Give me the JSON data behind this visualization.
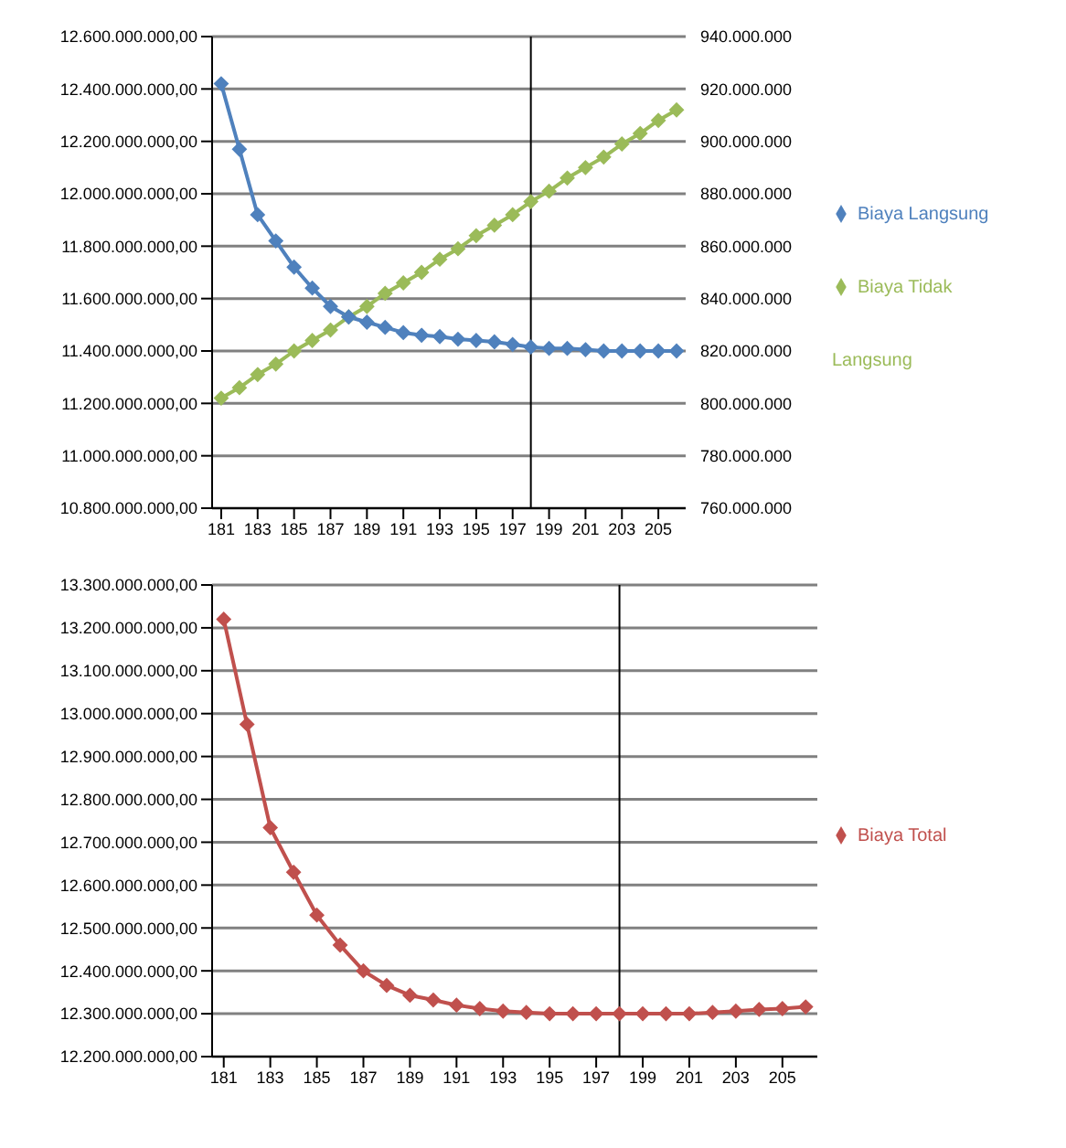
{
  "chart_data": [
    {
      "type": "line",
      "x": [
        181,
        182,
        183,
        184,
        185,
        186,
        187,
        188,
        189,
        190,
        191,
        192,
        193,
        194,
        195,
        196,
        197,
        198,
        199,
        200,
        201,
        202,
        203,
        204,
        205,
        206
      ],
      "xlim": [
        180.5,
        206.5
      ],
      "xticks": [
        181,
        183,
        185,
        187,
        189,
        191,
        193,
        195,
        197,
        199,
        201,
        203,
        205
      ],
      "ylim": [
        10800000000,
        12600000000
      ],
      "yticks": [
        {
          "value": 10800000000,
          "label": "10.800.000.000,00"
        },
        {
          "value": 11000000000,
          "label": "11.000.000.000,00"
        },
        {
          "value": 11200000000,
          "label": "11.200.000.000,00"
        },
        {
          "value": 11400000000,
          "label": "11.400.000.000,00"
        },
        {
          "value": 11600000000,
          "label": "11.600.000.000,00"
        },
        {
          "value": 11800000000,
          "label": "11.800.000.000,00"
        },
        {
          "value": 12000000000,
          "label": "12.000.000.000,00"
        },
        {
          "value": 12200000000,
          "label": "12.200.000.000,00"
        },
        {
          "value": 12400000000,
          "label": "12.400.000.000,00"
        },
        {
          "value": 12600000000,
          "label": "12.600.000.000,00"
        }
      ],
      "y2lim": [
        760000000,
        940000000
      ],
      "y2ticks": [
        {
          "value": 760000000,
          "label": "760.000.000"
        },
        {
          "value": 780000000,
          "label": "780.000.000"
        },
        {
          "value": 800000000,
          "label": "800.000.000"
        },
        {
          "value": 820000000,
          "label": "820.000.000"
        },
        {
          "value": 840000000,
          "label": "840.000.000"
        },
        {
          "value": 860000000,
          "label": "860.000.000"
        },
        {
          "value": 880000000,
          "label": "880.000.000"
        },
        {
          "value": 900000000,
          "label": "900.000.000"
        },
        {
          "value": 920000000,
          "label": "920.000.000"
        },
        {
          "value": 940000000,
          "label": "940.000.000"
        }
      ],
      "series": [
        {
          "name": "Biaya Langsung",
          "color": "#4f81bd",
          "values": [
            12420000000,
            12170000000,
            11920000000,
            11820000000,
            11720000000,
            11640000000,
            11570000000,
            11530000000,
            11510000000,
            11490000000,
            11470000000,
            11460000000,
            11455000000,
            11445000000,
            11440000000,
            11435000000,
            11425000000,
            11415000000,
            11410000000,
            11410000000,
            11405000000,
            11400000000,
            11400000000,
            11400000000,
            11400000000,
            11400000000
          ]
        },
        {
          "name": "Biaya Tidak Langsung",
          "color": "#9bbb59",
          "axis": "y2",
          "values": [
            802000000,
            806000000,
            811000000,
            815000000,
            820000000,
            824000000,
            828000000,
            833000000,
            837000000,
            842000000,
            846000000,
            850000000,
            855000000,
            859000000,
            864000000,
            868000000,
            872000000,
            877000000,
            881000000,
            886000000,
            890000000,
            894000000,
            899000000,
            903000000,
            908000000,
            912000000
          ]
        }
      ],
      "ref_lines": [
        {
          "axis": "x",
          "value": 198,
          "color": "#000000"
        }
      ],
      "grid": "y",
      "legend": "right",
      "marker": "diamond",
      "line_style": "solid"
    },
    {
      "type": "line",
      "x": [
        181,
        182,
        183,
        184,
        185,
        186,
        187,
        188,
        189,
        190,
        191,
        192,
        193,
        194,
        195,
        196,
        197,
        198,
        199,
        200,
        201,
        202,
        203,
        204,
        205,
        206
      ],
      "xlim": [
        180.5,
        206.5
      ],
      "xticks": [
        181,
        183,
        185,
        187,
        189,
        191,
        193,
        195,
        197,
        199,
        201,
        203,
        205
      ],
      "ylim": [
        12200000000,
        13300000000
      ],
      "yticks": [
        {
          "value": 12200000000,
          "label": "12.200.000.000,00"
        },
        {
          "value": 12300000000,
          "label": "12.300.000.000,00"
        },
        {
          "value": 12400000000,
          "label": "12.400.000.000,00"
        },
        {
          "value": 12500000000,
          "label": "12.500.000.000,00"
        },
        {
          "value": 12600000000,
          "label": "12.600.000.000,00"
        },
        {
          "value": 12700000000,
          "label": "12.700.000.000,00"
        },
        {
          "value": 12800000000,
          "label": "12.800.000.000,00"
        },
        {
          "value": 12900000000,
          "label": "12.900.000.000,00"
        },
        {
          "value": 13000000000,
          "label": "13.000.000.000,00"
        },
        {
          "value": 13100000000,
          "label": "13.100.000.000,00"
        },
        {
          "value": 13200000000,
          "label": "13.200.000.000,00"
        },
        {
          "value": 13300000000,
          "label": "13.300.000.000,00"
        }
      ],
      "series": [
        {
          "name": "Biaya Total",
          "color": "#c0504d",
          "values": [
            13220000000,
            12975000000,
            12734000000,
            12630000000,
            12530000000,
            12460000000,
            12400000000,
            12366000000,
            12343000000,
            12332000000,
            12320000000,
            12312000000,
            12306000000,
            12303000000,
            12300000000,
            12300000000,
            12300000000,
            12300000000,
            12300000000,
            12300000000,
            12300000000,
            12303000000,
            12306000000,
            12310000000,
            12312000000,
            12316000000
          ]
        }
      ],
      "ref_lines": [
        {
          "axis": "x",
          "value": 198,
          "color": "#000000"
        }
      ],
      "grid": "y",
      "legend": "right",
      "marker": "diamond",
      "line_style": "solid"
    }
  ]
}
